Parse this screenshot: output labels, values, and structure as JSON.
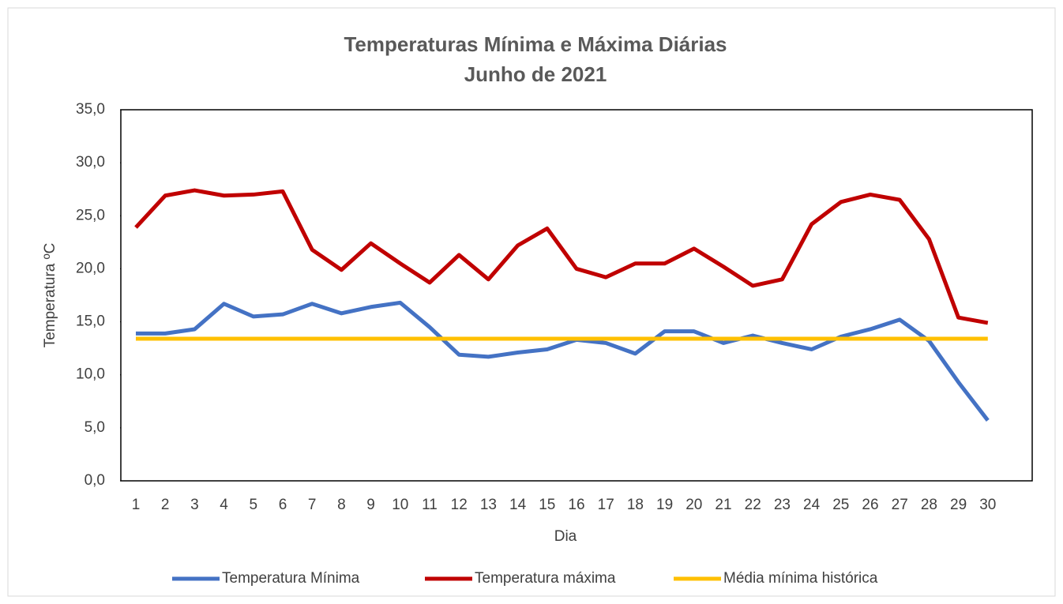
{
  "chart_data": {
    "type": "line",
    "title": "Temperaturas Mínima e Máxima Diárias",
    "subtitle": "Junho de 2021",
    "x_label": "Dia",
    "y_label": "Temperatura ºC",
    "categories": [
      "1",
      "2",
      "3",
      "4",
      "5",
      "6",
      "7",
      "8",
      "9",
      "10",
      "11",
      "12",
      "13",
      "14",
      "15",
      "16",
      "17",
      "18",
      "19",
      "20",
      "21",
      "22",
      "23",
      "24",
      "25",
      "26",
      "27",
      "28",
      "29",
      "30"
    ],
    "series": [
      {
        "name": "Temperatura Mínima",
        "color": "#4472c4",
        "values": [
          13.9,
          13.9,
          14.3,
          16.7,
          15.5,
          15.7,
          16.7,
          15.8,
          16.4,
          16.8,
          14.5,
          11.9,
          11.7,
          12.1,
          12.4,
          13.3,
          13.0,
          12.0,
          14.1,
          14.1,
          13.0,
          13.7,
          13.0,
          12.4,
          13.6,
          14.3,
          15.2,
          13.2,
          9.3,
          5.7
        ]
      },
      {
        "name": "Temperatura máxima",
        "color": "#c00000",
        "values": [
          23.9,
          26.9,
          27.4,
          26.9,
          27.0,
          27.3,
          21.8,
          19.9,
          22.4,
          20.5,
          18.7,
          21.3,
          19.0,
          22.2,
          23.8,
          20.0,
          19.2,
          20.5,
          20.5,
          21.9,
          20.2,
          18.4,
          19.0,
          24.2,
          26.3,
          27.0,
          26.5,
          22.8,
          15.4,
          14.9
        ]
      },
      {
        "name": "Média mínima histórica",
        "color": "#ffc000",
        "values": [
          13.4,
          13.4,
          13.4,
          13.4,
          13.4,
          13.4,
          13.4,
          13.4,
          13.4,
          13.4,
          13.4,
          13.4,
          13.4,
          13.4,
          13.4,
          13.4,
          13.4,
          13.4,
          13.4,
          13.4,
          13.4,
          13.4,
          13.4,
          13.4,
          13.4,
          13.4,
          13.4,
          13.4,
          13.4,
          13.4
        ]
      }
    ],
    "ylim": [
      0,
      35
    ],
    "yticks": [
      {
        "value": 0,
        "label": "0,0"
      },
      {
        "value": 5,
        "label": "5,0"
      },
      {
        "value": 10,
        "label": "10,0"
      },
      {
        "value": 15,
        "label": "15,0"
      },
      {
        "value": 20,
        "label": "20,0"
      },
      {
        "value": 25,
        "label": "25,0"
      },
      {
        "value": 30,
        "label": "30,0"
      },
      {
        "value": 35,
        "label": "35,0"
      }
    ],
    "grid": false,
    "legend": "bottom"
  }
}
